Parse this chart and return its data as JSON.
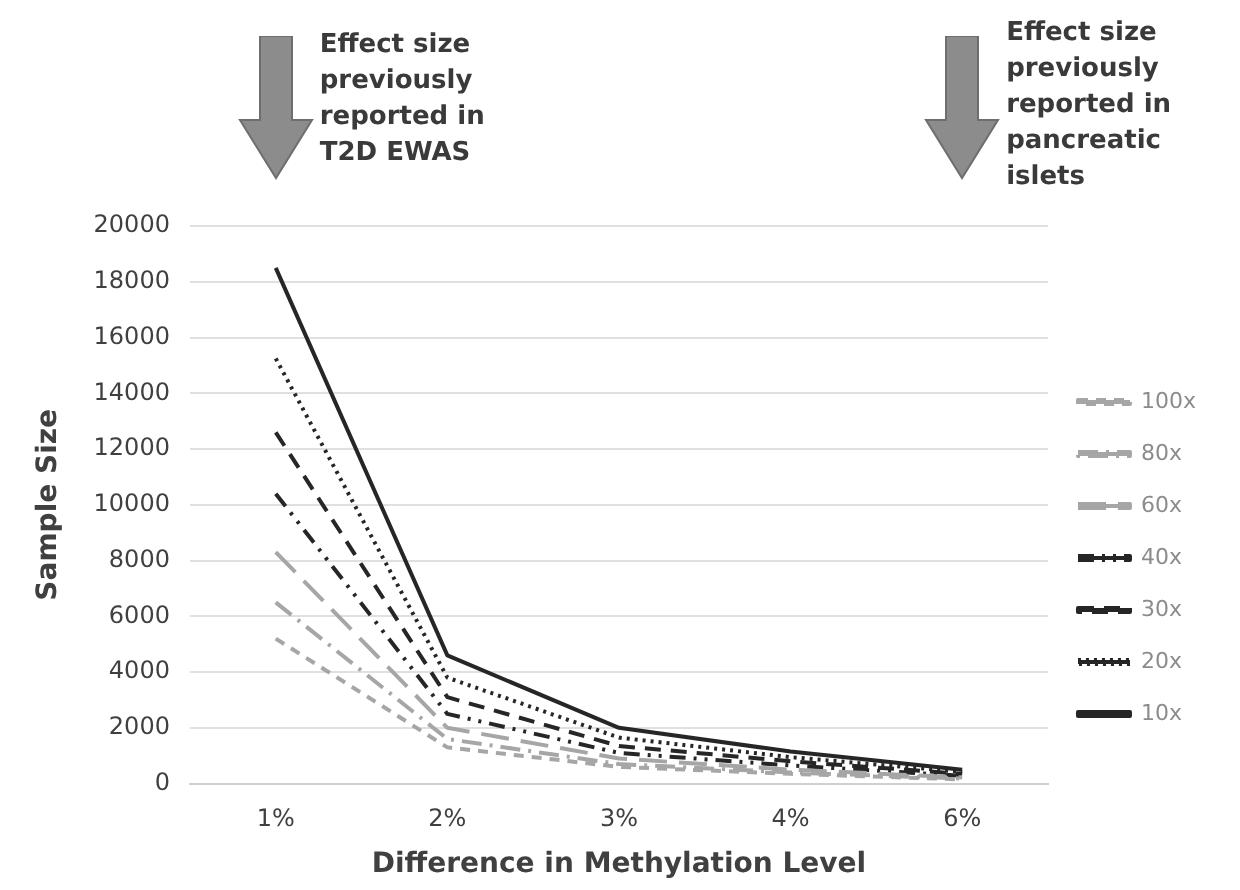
{
  "chart_data": {
    "type": "line",
    "xlabel": "Difference in Methylation Level",
    "ylabel": "Sample Size",
    "categories": [
      "1%",
      "2%",
      "3%",
      "4%",
      "6%"
    ],
    "ylim": [
      0,
      20000
    ],
    "yticks": [
      0,
      2000,
      4000,
      6000,
      8000,
      10000,
      12000,
      14000,
      16000,
      18000,
      20000
    ],
    "grid": "y",
    "legend": "right",
    "marker": "none",
    "series": [
      {
        "name": "100x",
        "color": "#a6a6a6",
        "line_style": "dashed",
        "values": [
          5200,
          1300,
          600,
          350,
          150
        ]
      },
      {
        "name": "80x",
        "color": "#a6a6a6",
        "line_style": "dashed",
        "values": [
          6500,
          1600,
          700,
          400,
          180
        ]
      },
      {
        "name": "60x",
        "color": "#a6a6a6",
        "line_style": "dashed",
        "values": [
          8300,
          2000,
          900,
          500,
          220
        ]
      },
      {
        "name": "40x",
        "color": "#262626",
        "line_style": "dashed",
        "values": [
          10400,
          2500,
          1100,
          650,
          280
        ]
      },
      {
        "name": "30x",
        "color": "#262626",
        "line_style": "dashed",
        "values": [
          12600,
          3100,
          1350,
          800,
          350
        ]
      },
      {
        "name": "20x",
        "color": "#262626",
        "line_style": "dotted",
        "values": [
          15250,
          3800,
          1650,
          950,
          420
        ]
      },
      {
        "name": "10x",
        "color": "#262626",
        "line_style": "solid",
        "values": [
          18500,
          4600,
          2000,
          1150,
          500
        ]
      }
    ],
    "annotations": [
      "Effect size previously reported in T2D EWAS",
      "Effect size previously reported in pancreatic islets"
    ]
  }
}
